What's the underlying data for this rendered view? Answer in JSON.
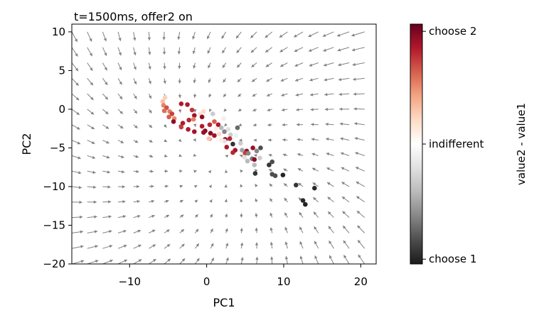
{
  "chart_data": {
    "type": "scatter",
    "title": "t=1500ms, offer2 on",
    "xlabel": "PC1",
    "ylabel": "PC2",
    "xlim": [
      -17.5,
      22
    ],
    "ylim": [
      -20,
      11
    ],
    "xticks": [
      -10,
      0,
      10,
      20
    ],
    "yticks": [
      10,
      5,
      0,
      -5,
      -10,
      -15,
      -20
    ],
    "grid": false,
    "quiver": {
      "color": "#808080",
      "x_grid": [
        -17.5,
        -15.5,
        -13.5,
        -11.5,
        -9.5,
        -7.5,
        -5.5,
        -3.5,
        -1.5,
        0.5,
        2.5,
        4.5,
        6.5,
        8.5,
        10.5,
        12.5,
        14.5,
        16.5,
        18.5,
        20.5
      ],
      "y_grid": [
        10,
        8,
        6,
        4,
        2,
        0,
        -2,
        -4,
        -6,
        -8,
        -10,
        -12,
        -14,
        -16,
        -18,
        -20
      ],
      "fixed_point": [
        1,
        -6
      ],
      "description_free": true
    },
    "colorbar": {
      "label": "value2 - value1",
      "ticks": [
        "choose 2",
        "indifferent",
        "choose 1"
      ],
      "colormap": [
        "#1a1a1a",
        "#4d4d4d",
        "#878787",
        "#bababa",
        "#e0e0e0",
        "#ffffff",
        "#fddbc7",
        "#f4a582",
        "#d6604d",
        "#b2182b",
        "#67001f"
      ]
    },
    "points": [
      {
        "x": -5.4,
        "y": 1.5,
        "c": 0.62
      },
      {
        "x": -5.7,
        "y": 1.0,
        "c": 0.65
      },
      {
        "x": -5.6,
        "y": 0.5,
        "c": 0.75
      },
      {
        "x": -5.2,
        "y": 0.2,
        "c": 0.82
      },
      {
        "x": -5.5,
        "y": -0.2,
        "c": 0.78
      },
      {
        "x": -4.8,
        "y": -0.3,
        "c": 0.76
      },
      {
        "x": -4.5,
        "y": -0.6,
        "c": 0.84
      },
      {
        "x": -4.9,
        "y": -1.0,
        "c": 0.8
      },
      {
        "x": -4.2,
        "y": -1.2,
        "c": 0.74
      },
      {
        "x": -3.3,
        "y": 0.7,
        "c": 0.9
      },
      {
        "x": -2.5,
        "y": 0.6,
        "c": 0.9
      },
      {
        "x": -1.9,
        "y": -0.1,
        "c": 0.86
      },
      {
        "x": -2.4,
        "y": -0.4,
        "c": 0.5
      },
      {
        "x": -0.4,
        "y": -0.3,
        "c": 0.6
      },
      {
        "x": -0.8,
        "y": -0.6,
        "c": 0.58
      },
      {
        "x": -1.6,
        "y": -0.8,
        "c": 0.92
      },
      {
        "x": -0.6,
        "y": -1.0,
        "c": 0.95
      },
      {
        "x": 0.8,
        "y": -0.6,
        "c": 0.35
      },
      {
        "x": 0.1,
        "y": -1.2,
        "c": 0.5
      },
      {
        "x": -2.3,
        "y": -1.4,
        "c": 0.88
      },
      {
        "x": -1.7,
        "y": -1.3,
        "c": 0.75
      },
      {
        "x": -4.3,
        "y": -1.6,
        "c": 0.95
      },
      {
        "x": -3.1,
        "y": -1.8,
        "c": 0.9
      },
      {
        "x": -3.3,
        "y": -2.3,
        "c": 0.85
      },
      {
        "x": -2.4,
        "y": -2.6,
        "c": 0.9
      },
      {
        "x": -1.6,
        "y": -2.9,
        "c": 0.92
      },
      {
        "x": -0.6,
        "y": -2.2,
        "c": 0.9
      },
      {
        "x": -0.2,
        "y": -2.8,
        "c": 0.96
      },
      {
        "x": 0.4,
        "y": -2.0,
        "c": 0.88
      },
      {
        "x": 1.0,
        "y": -1.6,
        "c": 0.8
      },
      {
        "x": 1.5,
        "y": -2.0,
        "c": 0.9
      },
      {
        "x": 1.2,
        "y": -2.5,
        "c": 0.55
      },
      {
        "x": 1.9,
        "y": -2.4,
        "c": 0.3
      },
      {
        "x": 2.2,
        "y": -1.2,
        "c": 0.55
      },
      {
        "x": 2.8,
        "y": -2.6,
        "c": 0.4
      },
      {
        "x": 2.3,
        "y": -2.9,
        "c": 0.2
      },
      {
        "x": 1.6,
        "y": -3.2,
        "c": 0.6
      },
      {
        "x": 1.0,
        "y": -3.4,
        "c": 0.92
      },
      {
        "x": 0.5,
        "y": -3.1,
        "c": 0.95
      },
      {
        "x": -0.4,
        "y": -3.0,
        "c": 0.93
      },
      {
        "x": 0.3,
        "y": -3.8,
        "c": 0.65
      },
      {
        "x": 3.1,
        "y": -3.3,
        "c": 0.35
      },
      {
        "x": 4.0,
        "y": -2.4,
        "c": 0.15
      },
      {
        "x": 3.8,
        "y": -3.4,
        "c": 0.45
      },
      {
        "x": 3.0,
        "y": -3.8,
        "c": 0.88
      },
      {
        "x": 2.4,
        "y": -3.9,
        "c": 0.95
      },
      {
        "x": 4.4,
        "y": -4.4,
        "c": 0.35
      },
      {
        "x": 3.4,
        "y": -4.5,
        "c": 0.05
      },
      {
        "x": 2.3,
        "y": -4.1,
        "c": 0.4
      },
      {
        "x": 1.9,
        "y": -4.0,
        "c": 0.55
      },
      {
        "x": 1.2,
        "y": -4.3,
        "c": 0.5
      },
      {
        "x": 2.6,
        "y": -4.9,
        "c": 0.9
      },
      {
        "x": 3.7,
        "y": -5.3,
        "c": 0.92
      },
      {
        "x": 3.4,
        "y": -5.6,
        "c": 0.88
      },
      {
        "x": 4.6,
        "y": -5.3,
        "c": 0.25
      },
      {
        "x": 5.2,
        "y": -5.4,
        "c": 0.93
      },
      {
        "x": 5.0,
        "y": -5.7,
        "c": 0.85
      },
      {
        "x": 5.4,
        "y": -5.7,
        "c": 0.2
      },
      {
        "x": 4.9,
        "y": -6.2,
        "c": 0.4
      },
      {
        "x": 5.3,
        "y": -6.7,
        "c": 0.3
      },
      {
        "x": 5.9,
        "y": -6.4,
        "c": 0.18
      },
      {
        "x": 6.2,
        "y": -6.5,
        "c": 0.95
      },
      {
        "x": 6.0,
        "y": -5.0,
        "c": 0.93
      },
      {
        "x": 6.9,
        "y": -6.3,
        "c": 0.35
      },
      {
        "x": 6.5,
        "y": -5.4,
        "c": 0.2
      },
      {
        "x": 6.2,
        "y": -7.2,
        "c": 0.3
      },
      {
        "x": 7.0,
        "y": -5.0,
        "c": 0.1
      },
      {
        "x": 6.3,
        "y": -8.3,
        "c": 0.05
      },
      {
        "x": 8.1,
        "y": -7.2,
        "c": 0.05
      },
      {
        "x": 8.5,
        "y": -6.8,
        "c": 0.1
      },
      {
        "x": 8.5,
        "y": -8.4,
        "c": 0.1
      },
      {
        "x": 8.9,
        "y": -8.6,
        "c": 0.1
      },
      {
        "x": 9.9,
        "y": -8.5,
        "c": 0.02
      },
      {
        "x": 11.6,
        "y": -9.8,
        "c": 0.05
      },
      {
        "x": 14.0,
        "y": -10.2,
        "c": 0.03
      },
      {
        "x": 12.5,
        "y": -11.8,
        "c": 0.03
      },
      {
        "x": 12.8,
        "y": -12.3,
        "c": 0.02
      }
    ]
  }
}
